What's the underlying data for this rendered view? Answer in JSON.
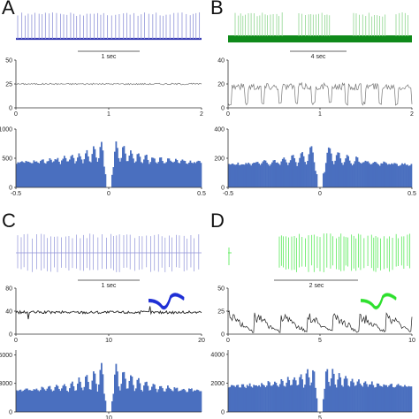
{
  "colors": {
    "blue_trace": "#3b3fb5",
    "light_blue_trace": "#8f93d8",
    "dark_green_trace": "#0f8a1a",
    "light_green_trace": "#8fd68f",
    "bright_green_trace": "#4fe84f",
    "histogram_fill": "#4a6fbf",
    "gray_line": "#777777",
    "black_line": "#222222",
    "waveform_blue": "#1f2fd6",
    "waveform_green": "#2ee02e"
  },
  "panels": [
    {
      "letter": "A",
      "trace_scale_label": "1 sec",
      "rate_chart": {
        "type": "line",
        "x_ticks": [
          "0",
          "1",
          "2"
        ],
        "y_ticks": [
          "0",
          "25",
          "50"
        ],
        "xlim": [
          0,
          2
        ],
        "ylim": [
          0,
          50
        ],
        "level": 25,
        "style": "flat"
      },
      "histogram": {
        "type": "bar",
        "x_ticks": [
          "-0.5",
          "0",
          "0.5"
        ],
        "y_ticks": [
          "0",
          "500",
          "1000"
        ],
        "xlim": [
          -0.5,
          0.5
        ],
        "ylim": [
          0,
          1000
        ],
        "baseline": 420,
        "peak": 870,
        "period": 0.04
      }
    },
    {
      "letter": "B",
      "trace_scale_label": "4 sec",
      "rate_chart": {
        "type": "line",
        "x_ticks": [
          "0",
          "1",
          "2"
        ],
        "y_ticks": [
          "0",
          "20",
          "40"
        ],
        "xlim": [
          0,
          2
        ],
        "ylim": [
          0,
          40
        ],
        "level": 18,
        "style": "bursty"
      },
      "histogram": {
        "type": "bar",
        "x_ticks": [
          "-0.5",
          "0",
          "0.5"
        ],
        "y_ticks": [
          "0",
          "200",
          "400"
        ],
        "xlim": [
          -0.5,
          0.5
        ],
        "ylim": [
          0,
          400
        ],
        "baseline": 155,
        "peak": 320,
        "period": 0.05
      }
    },
    {
      "letter": "C",
      "trace_scale_label": "1 sec",
      "rate_chart": {
        "type": "line",
        "x_ticks": [
          "0",
          "10",
          "20"
        ],
        "y_ticks": [
          "0",
          "40",
          "80"
        ],
        "xlim": [
          0,
          20
        ],
        "ylim": [
          0,
          80
        ],
        "level": 38,
        "style": "noisy"
      },
      "histogram": {
        "type": "bar",
        "x_ticks": [
          "10"
        ],
        "y_ticks": [
          "0",
          "3000",
          "6000"
        ],
        "xlim": [
          0,
          20
        ],
        "ylim": [
          0,
          6500
        ],
        "baseline": 2200,
        "peak": 5700,
        "period": 0.8
      }
    },
    {
      "letter": "D",
      "trace_scale_label": "2 sec",
      "rate_chart": {
        "type": "line",
        "x_ticks": [
          "0",
          "5",
          "10"
        ],
        "y_ticks": [
          "0",
          "25",
          "50"
        ],
        "xlim": [
          0,
          10
        ],
        "ylim": [
          0,
          50
        ],
        "level": 14,
        "style": "sawtooth"
      },
      "histogram": {
        "type": "bar",
        "x_ticks": [
          "5"
        ],
        "y_ticks": [
          "0",
          "2000",
          "4000"
        ],
        "xlim": [
          0,
          10
        ],
        "ylim": [
          0,
          4300
        ],
        "baseline": 1750,
        "peak": 3500,
        "period": 0.35
      }
    }
  ]
}
